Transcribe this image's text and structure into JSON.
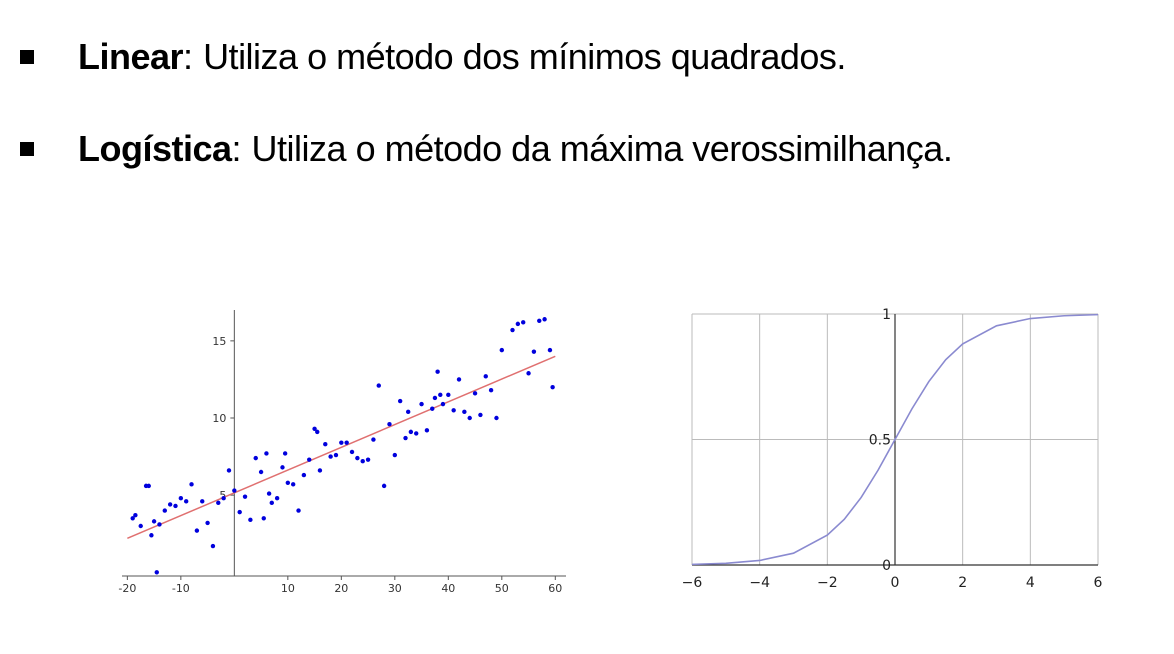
{
  "bullets": [
    {
      "term": "Linear",
      "separator": ": ",
      "text": "Utiliza o método dos mínimos quadrados."
    },
    {
      "term": "Logística",
      "separator": ": ",
      "text": "Utiliza o método da máxima verossimilhança."
    }
  ],
  "colors": {
    "points": "#0000dd",
    "fit_line": "#e07070",
    "sigmoid": "#8a8ad0",
    "grid": "#bbbbbb",
    "axis": "#555555"
  },
  "chart_data": [
    {
      "type": "scatter",
      "title": "",
      "xlabel": "",
      "ylabel": "",
      "xlim": [
        -21,
        62
      ],
      "ylim": [
        -0.5,
        17
      ],
      "xticks": [
        -20,
        -10,
        10,
        20,
        30,
        40,
        50,
        60
      ],
      "xtick_labels": [
        "-20",
        "-10",
        "10",
        "20",
        "30",
        "40",
        "50",
        "60"
      ],
      "yticks": [
        5,
        10,
        15
      ],
      "ytick_labels": [
        "5",
        "10",
        "15"
      ],
      "grid": false,
      "series": [
        {
          "kind": "points",
          "x": [
            -19,
            -18.5,
            -17.5,
            -16.5,
            -16,
            -15.5,
            -15,
            -14,
            -13,
            -12,
            -11,
            -10,
            -9,
            -8,
            -7,
            -6,
            -5,
            -4,
            -3,
            -2,
            -1,
            0,
            1,
            2,
            3,
            4,
            5,
            5.5,
            6,
            6.5,
            7,
            8,
            9,
            9.5,
            10,
            11,
            12,
            13,
            14,
            15,
            15.5,
            16,
            17,
            18,
            19,
            20,
            21,
            22,
            23,
            24,
            25,
            26,
            27,
            28,
            29,
            30,
            31,
            32,
            32.5,
            33,
            34,
            35,
            36,
            37,
            37.5,
            38,
            38.5,
            39,
            40,
            41,
            42,
            43,
            44,
            45,
            46,
            47,
            48,
            49,
            50,
            52,
            53,
            54,
            55,
            56,
            57,
            58,
            59,
            59.5,
            -14.5
          ],
          "y": [
            3.5,
            3.7,
            3.0,
            5.6,
            5.6,
            2.4,
            3.3,
            3.1,
            4.0,
            4.4,
            4.3,
            4.8,
            4.6,
            5.7,
            2.7,
            4.6,
            3.2,
            1.7,
            4.5,
            4.8,
            6.6,
            5.3,
            3.9,
            4.9,
            3.4,
            7.4,
            6.5,
            3.5,
            7.7,
            5.1,
            4.5,
            4.8,
            6.8,
            7.7,
            5.8,
            5.7,
            4.0,
            6.3,
            7.3,
            9.3,
            9.1,
            6.6,
            8.3,
            7.5,
            7.6,
            8.4,
            8.4,
            7.8,
            7.4,
            7.2,
            7.3,
            8.6,
            12.1,
            5.6,
            9.6,
            7.6,
            11.1,
            8.7,
            10.4,
            9.1,
            9.0,
            10.9,
            9.2,
            10.6,
            11.3,
            13.0,
            11.5,
            10.9,
            11.5,
            10.5,
            12.5,
            10.4,
            10.0,
            11.6,
            10.2,
            12.7,
            11.8,
            10.0,
            14.4,
            15.7,
            16.1,
            16.2,
            12.9,
            14.3,
            16.3,
            16.4,
            14.4,
            12.0,
            0.0
          ]
        },
        {
          "kind": "fit_line",
          "x": [
            -20,
            60
          ],
          "y": [
            2.2,
            14.0
          ]
        }
      ]
    },
    {
      "type": "line",
      "title": "",
      "xlabel": "",
      "ylabel": "",
      "xlim": [
        -6,
        6
      ],
      "ylim": [
        0,
        1
      ],
      "xticks": [
        -6,
        -4,
        -2,
        0,
        2,
        4,
        6
      ],
      "xtick_labels": [
        "−6",
        "−4",
        "−2",
        "0",
        "2",
        "4",
        "6"
      ],
      "yticks": [
        0,
        0.5,
        1
      ],
      "ytick_labels": [
        "0",
        "0.5",
        "1"
      ],
      "grid": true,
      "series": [
        {
          "kind": "curve",
          "x": [
            -6,
            -5,
            -4,
            -3,
            -2,
            -1.5,
            -1,
            -0.5,
            0,
            0.5,
            1,
            1.5,
            2,
            3,
            4,
            5,
            6
          ],
          "y": [
            0.0025,
            0.0067,
            0.018,
            0.047,
            0.119,
            0.182,
            0.269,
            0.378,
            0.5,
            0.622,
            0.731,
            0.818,
            0.881,
            0.953,
            0.982,
            0.993,
            0.9975
          ]
        }
      ]
    }
  ]
}
